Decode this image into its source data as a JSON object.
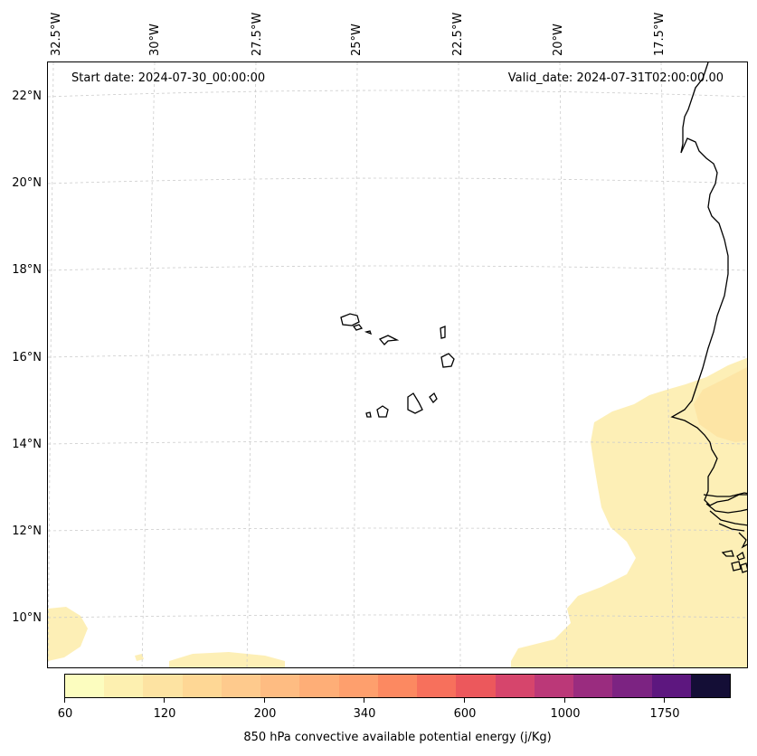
{
  "header": {
    "start_date": "Start date: 2024-07-30_00:00:00",
    "valid_date": "Valid_date: 2024-07-31T02:00:00.00"
  },
  "axes": {
    "longitude_labels": [
      "32.5°W",
      "30°W",
      "27.5°W",
      "25°W",
      "22.5°W",
      "20°W",
      "17.5°W"
    ],
    "latitude_labels": [
      "22°N",
      "20°N",
      "18°N",
      "16°N",
      "14°N",
      "12°N",
      "10°N"
    ]
  },
  "map": {
    "region": "Cabo Verde / West African coast",
    "gridlines": true,
    "coastline_color": "#000000",
    "gridline_color": "#cccccc"
  },
  "colorbar": {
    "label": "850 hPa convective available potential energy (j/Kg)",
    "tick_labels": [
      "60",
      "120",
      "200",
      "340",
      "600",
      "1000",
      "1750"
    ],
    "colors": [
      "#fcfdbf",
      "#fdf0b0",
      "#fde3a2",
      "#fed795",
      "#feca8d",
      "#febc82",
      "#feae77",
      "#fe9f6d",
      "#fc8961",
      "#f7705c",
      "#ec585c",
      "#d6456c",
      "#bb3878",
      "#9a2c7f",
      "#7c2382",
      "#5d177f",
      "#140e36"
    ]
  }
}
